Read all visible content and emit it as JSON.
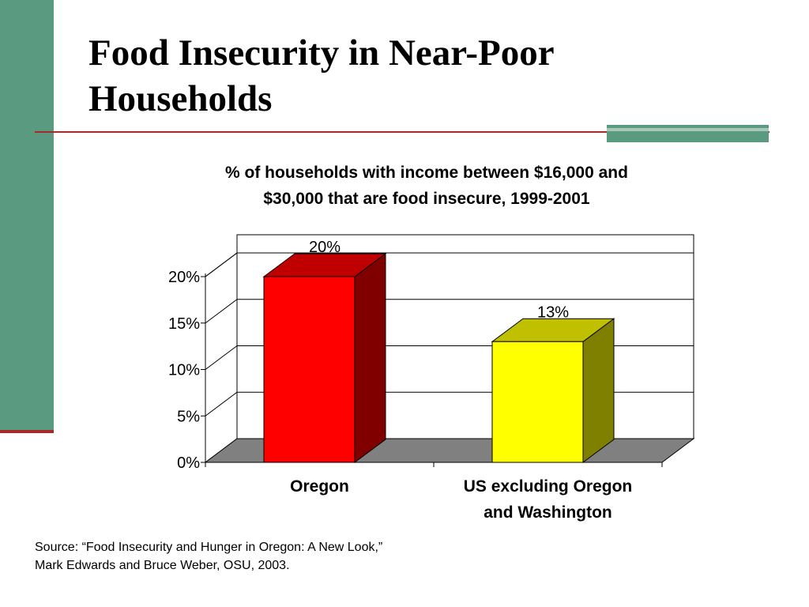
{
  "slide": {
    "title": "Food Insecurity in Near-Poor Households",
    "source_lines": [
      "Source: “Food Insecurity and Hunger in Oregon: A New Look,”",
      "Mark Edwards and Bruce Weber, OSU, 2003."
    ],
    "colors": {
      "sidebar": "#5a9a80",
      "rule": "#a52a2a"
    }
  },
  "chart_data": {
    "type": "bar",
    "title_lines": [
      "% of households with income between $16,000 and",
      "$30,000 that are food insecure, 1999-2001"
    ],
    "categories": [
      "Oregon",
      "US excluding Oregon and Washington"
    ],
    "category_label_lines": [
      [
        "Oregon"
      ],
      [
        "US excluding Oregon",
        "and Washington"
      ]
    ],
    "values": [
      20,
      13
    ],
    "data_labels": [
      "20%",
      "13%"
    ],
    "ylim": [
      0,
      20
    ],
    "yticks": [
      "0%",
      "5%",
      "10%",
      "15%",
      "20%"
    ],
    "ytick_values": [
      0,
      5,
      10,
      15,
      20
    ],
    "grid": true,
    "style": "3d",
    "bar_colors": [
      "#ff0000",
      "#ffff00"
    ],
    "bar_side_colors": [
      "#800000",
      "#808000"
    ],
    "bar_top_colors": [
      "#c00000",
      "#c0c000"
    ],
    "floor_color": "#808080"
  }
}
